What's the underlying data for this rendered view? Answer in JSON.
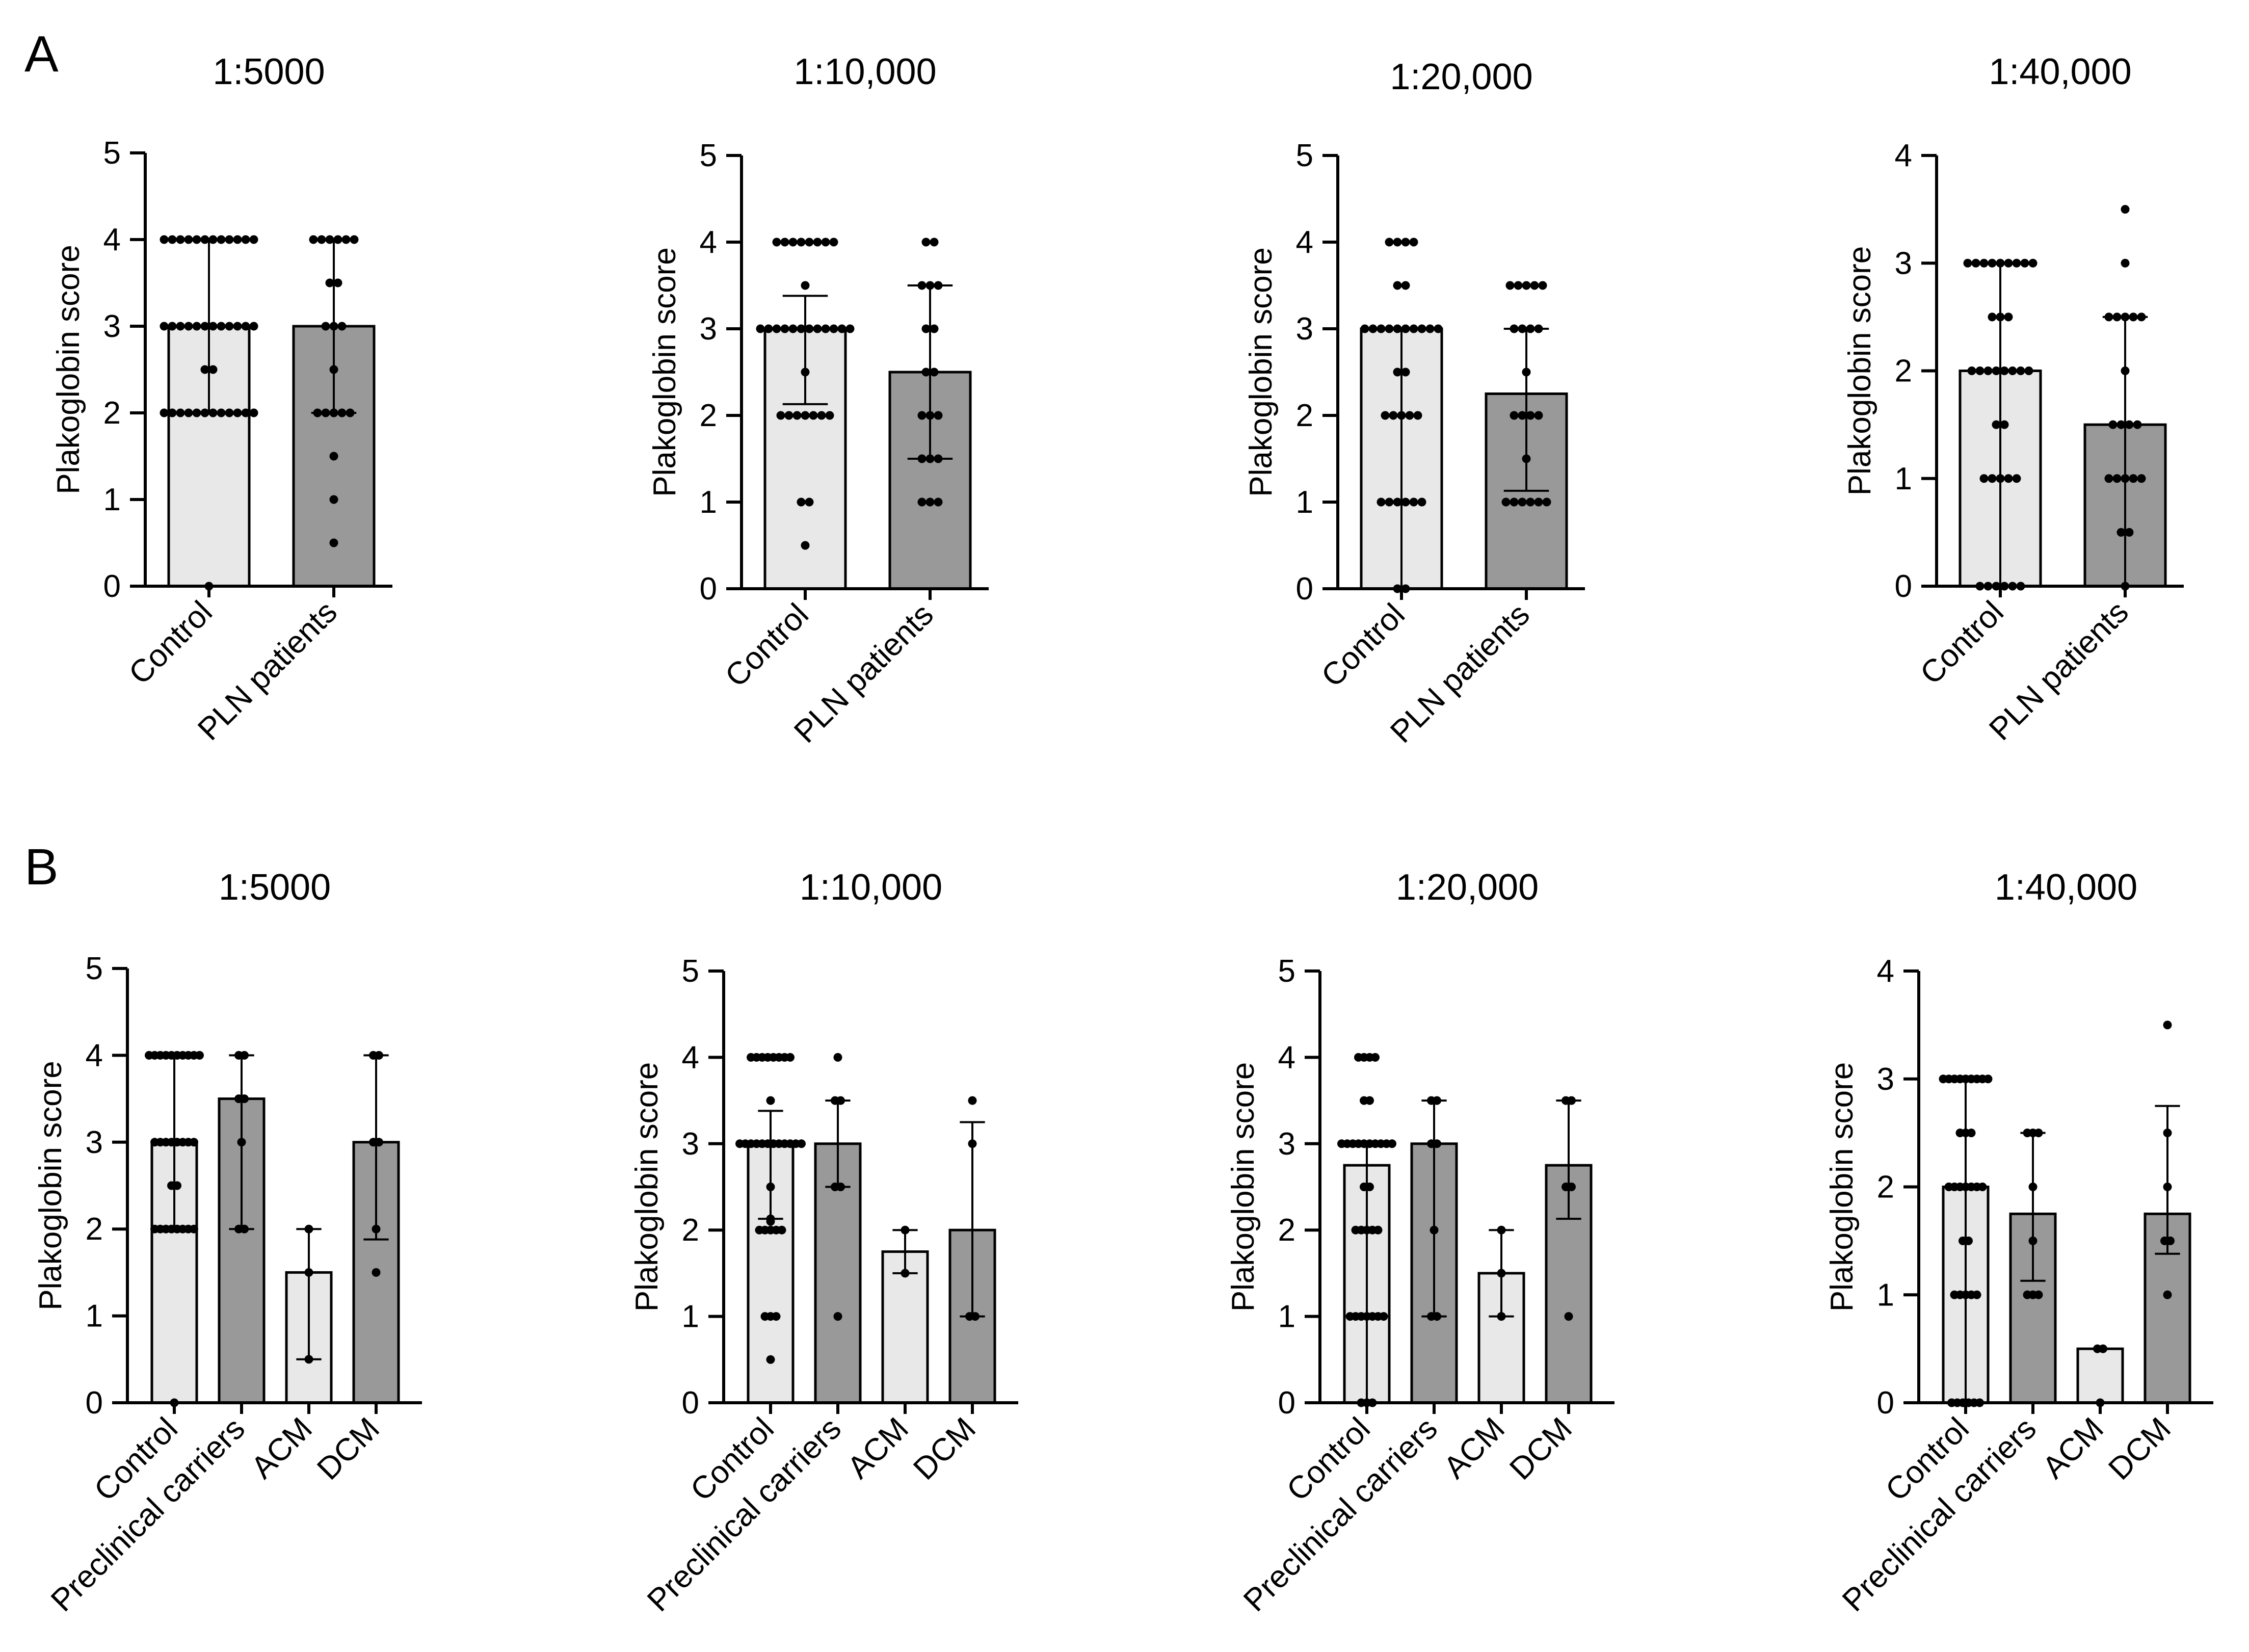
{
  "panel_labels": [
    "A",
    "B"
  ],
  "colors": {
    "light_bar": "#e8e8e8",
    "dark_bar": "#999999",
    "ink": "#000000"
  },
  "chart_data": [
    {
      "id": "A1",
      "row": "A",
      "type": "bar",
      "title": "1:5000",
      "ylabel": "Plakoglobin score",
      "ylim": [
        0,
        5
      ],
      "yticks": [
        0,
        1,
        2,
        3,
        4,
        5
      ],
      "categories": [
        "Control",
        "PLN patients"
      ],
      "values": [
        3,
        3
      ],
      "error_low": [
        2,
        2
      ],
      "error_high": [
        4,
        4
      ],
      "points": [
        [
          4,
          4,
          4,
          4,
          4,
          4,
          4,
          4,
          4,
          4,
          4,
          4,
          3,
          3,
          3,
          3,
          3,
          3,
          3,
          3,
          3,
          3,
          3,
          3,
          2.5,
          2.5,
          2,
          2,
          2,
          2,
          2,
          2,
          2,
          2,
          2,
          2,
          2,
          2,
          0
        ],
        [
          4,
          4,
          4,
          4,
          4,
          4,
          3.5,
          3.5,
          3,
          3,
          3,
          2.5,
          2,
          2,
          2,
          2,
          2,
          1.5,
          1,
          0.5
        ]
      ]
    },
    {
      "id": "A2",
      "row": "A",
      "type": "bar",
      "title": "1:10,000",
      "ylabel": "Plakoglobin score",
      "ylim": [
        0,
        5
      ],
      "yticks": [
        0,
        1,
        2,
        3,
        4,
        5
      ],
      "categories": [
        "Control",
        "PLN patients"
      ],
      "values": [
        3,
        2.5
      ],
      "error_low": [
        2.13,
        1.5
      ],
      "error_high": [
        3.38,
        3.5
      ],
      "points": [
        [
          4,
          4,
          4,
          4,
          4,
          4,
          4,
          4,
          3.5,
          3,
          3,
          3,
          3,
          3,
          3,
          3,
          3,
          3,
          3,
          3,
          3,
          2.5,
          2,
          2,
          2,
          2,
          2,
          2,
          2,
          1,
          1,
          0.5
        ],
        [
          4,
          4,
          3.5,
          3.5,
          3.5,
          3,
          3,
          2.5,
          2.5,
          2,
          2,
          2,
          1.5,
          1.5,
          1.5,
          1,
          1,
          1
        ]
      ]
    },
    {
      "id": "A3",
      "row": "A",
      "type": "bar",
      "title": "1:20,000",
      "ylabel": "Plakoglobin score",
      "ylim": [
        0,
        5
      ],
      "yticks": [
        0,
        1,
        2,
        3,
        4,
        5
      ],
      "categories": [
        "Control",
        "PLN patients"
      ],
      "values": [
        3,
        2.25
      ],
      "error_low": [
        0,
        1.13
      ],
      "error_high": [
        3,
        3
      ],
      "points": [
        [
          4,
          4,
          4,
          4,
          3.5,
          3.5,
          3,
          3,
          3,
          3,
          3,
          3,
          3,
          3,
          3,
          3,
          2.5,
          2.5,
          2,
          2,
          2,
          2,
          2,
          1,
          1,
          1,
          1,
          1,
          1,
          0,
          0
        ],
        [
          3.5,
          3.5,
          3.5,
          3.5,
          3.5,
          3,
          3,
          3,
          3,
          2.5,
          2,
          2,
          2,
          2,
          1.5,
          1,
          1,
          1,
          1,
          1,
          1
        ]
      ]
    },
    {
      "id": "A4",
      "row": "A",
      "type": "bar",
      "title": "1:40,000",
      "ylabel": "Plakoglobin score",
      "ylim": [
        0,
        4
      ],
      "yticks": [
        0,
        1,
        2,
        3,
        4
      ],
      "categories": [
        "Control",
        "PLN patients"
      ],
      "values": [
        2,
        1.5
      ],
      "error_low": [
        0,
        0
      ],
      "error_high": [
        3,
        2.5
      ],
      "points": [
        [
          3,
          3,
          3,
          3,
          3,
          3,
          3,
          3,
          3,
          2.5,
          2.5,
          2.5,
          2,
          2,
          2,
          2,
          2,
          2,
          2,
          2,
          1.5,
          1.5,
          1,
          1,
          1,
          1,
          1,
          0,
          0,
          0,
          0,
          0,
          0
        ],
        [
          3.5,
          3,
          2.5,
          2.5,
          2.5,
          2.5,
          2.5,
          2,
          1.5,
          1.5,
          1.5,
          1.5,
          1,
          1,
          1,
          1,
          1,
          0.5,
          0.5,
          0
        ]
      ]
    },
    {
      "id": "B1",
      "row": "B",
      "type": "bar",
      "title": "1:5000",
      "ylabel": "Plakoglobin score",
      "ylim": [
        0,
        5
      ],
      "yticks": [
        0,
        1,
        2,
        3,
        4,
        5
      ],
      "categories": [
        "Control",
        "Preclinical carriers",
        "ACM",
        "DCM"
      ],
      "values": [
        3,
        3.5,
        1.5,
        3
      ],
      "error_low": [
        2,
        2,
        0.5,
        1.88
      ],
      "error_high": [
        4,
        4,
        2,
        4
      ],
      "points": [
        [
          4,
          4,
          4,
          4,
          4,
          4,
          4,
          4,
          4,
          4,
          3,
          3,
          3,
          3,
          3,
          3,
          3,
          3,
          2.5,
          2.5,
          2,
          2,
          2,
          2,
          2,
          2,
          2,
          2,
          0
        ],
        [
          4,
          4,
          3.5,
          3.5,
          3,
          2,
          2
        ],
        [
          2,
          1.5,
          0.5
        ],
        [
          4,
          4,
          3,
          3,
          2,
          1.5
        ]
      ]
    },
    {
      "id": "B2",
      "row": "B",
      "type": "bar",
      "title": "1:10,000",
      "ylabel": "Plakoglobin score",
      "ylim": [
        0,
        5
      ],
      "yticks": [
        0,
        1,
        2,
        3,
        4,
        5
      ],
      "categories": [
        "Control",
        "Preclinical carriers",
        "ACM",
        "DCM"
      ],
      "values": [
        3,
        3,
        1.75,
        2
      ],
      "error_low": [
        2.13,
        2.5,
        1.5,
        1
      ],
      "error_high": [
        3.38,
        3.5,
        2,
        3.25
      ],
      "points": [
        [
          4,
          4,
          4,
          4,
          4,
          4,
          4,
          4,
          3.5,
          3,
          3,
          3,
          3,
          3,
          3,
          3,
          3,
          3,
          3,
          3,
          3,
          2.5,
          2.13,
          2.1,
          2,
          2,
          2,
          2,
          2,
          1,
          1,
          1,
          0.5
        ],
        [
          4,
          3.5,
          3.5,
          2.5,
          2.5,
          1
        ],
        [
          2,
          1.5
        ],
        [
          3.5,
          3,
          1,
          1
        ]
      ]
    },
    {
      "id": "B3",
      "row": "B",
      "type": "bar",
      "title": "1:20,000",
      "ylabel": "Plakoglobin score",
      "ylim": [
        0,
        5
      ],
      "yticks": [
        0,
        1,
        2,
        3,
        4,
        5
      ],
      "categories": [
        "Control",
        "Preclinical carriers",
        "ACM",
        "DCM"
      ],
      "values": [
        2.75,
        3,
        1.5,
        2.75
      ],
      "error_low": [
        0,
        1,
        1,
        2.13
      ],
      "error_high": [
        3,
        3.5,
        2,
        3.5
      ],
      "points": [
        [
          4,
          4,
          4,
          4,
          3.5,
          3.5,
          3,
          3,
          3,
          3,
          3,
          3,
          3,
          3,
          3,
          3,
          2.5,
          2.5,
          2,
          2,
          2,
          2,
          2,
          1,
          1,
          1,
          1,
          1,
          1,
          1,
          0,
          0,
          0
        ],
        [
          3.5,
          3.5,
          3,
          3,
          2,
          1,
          1
        ],
        [
          2,
          1.5,
          1
        ],
        [
          3.5,
          3.5,
          2.5,
          2.5,
          1
        ]
      ]
    },
    {
      "id": "B4",
      "row": "B",
      "type": "bar",
      "title": "1:40,000",
      "ylabel": "Plakoglobin score",
      "ylim": [
        0,
        4
      ],
      "yticks": [
        0,
        1,
        2,
        3,
        4
      ],
      "categories": [
        "Control",
        "Preclinical carriers",
        "ACM",
        "DCM"
      ],
      "values": [
        2,
        1.75,
        0.5,
        1.75
      ],
      "error_low": [
        0,
        1.13,
        0.5,
        1.38
      ],
      "error_high": [
        3,
        2.5,
        0.5,
        2.75
      ],
      "points": [
        [
          3,
          3,
          3,
          3,
          3,
          3,
          3,
          3,
          3,
          2.5,
          2.5,
          2.5,
          2,
          2,
          2,
          2,
          2,
          2,
          2,
          1.5,
          1.5,
          1,
          1,
          1,
          1,
          1,
          0,
          0,
          0,
          0,
          0,
          0
        ],
        [
          2.5,
          2.5,
          2.5,
          2,
          1.5,
          1,
          1,
          1
        ],
        [
          0.5,
          0.5,
          0
        ],
        [
          3.5,
          2.5,
          2,
          1.5,
          1.5,
          1
        ]
      ]
    }
  ]
}
